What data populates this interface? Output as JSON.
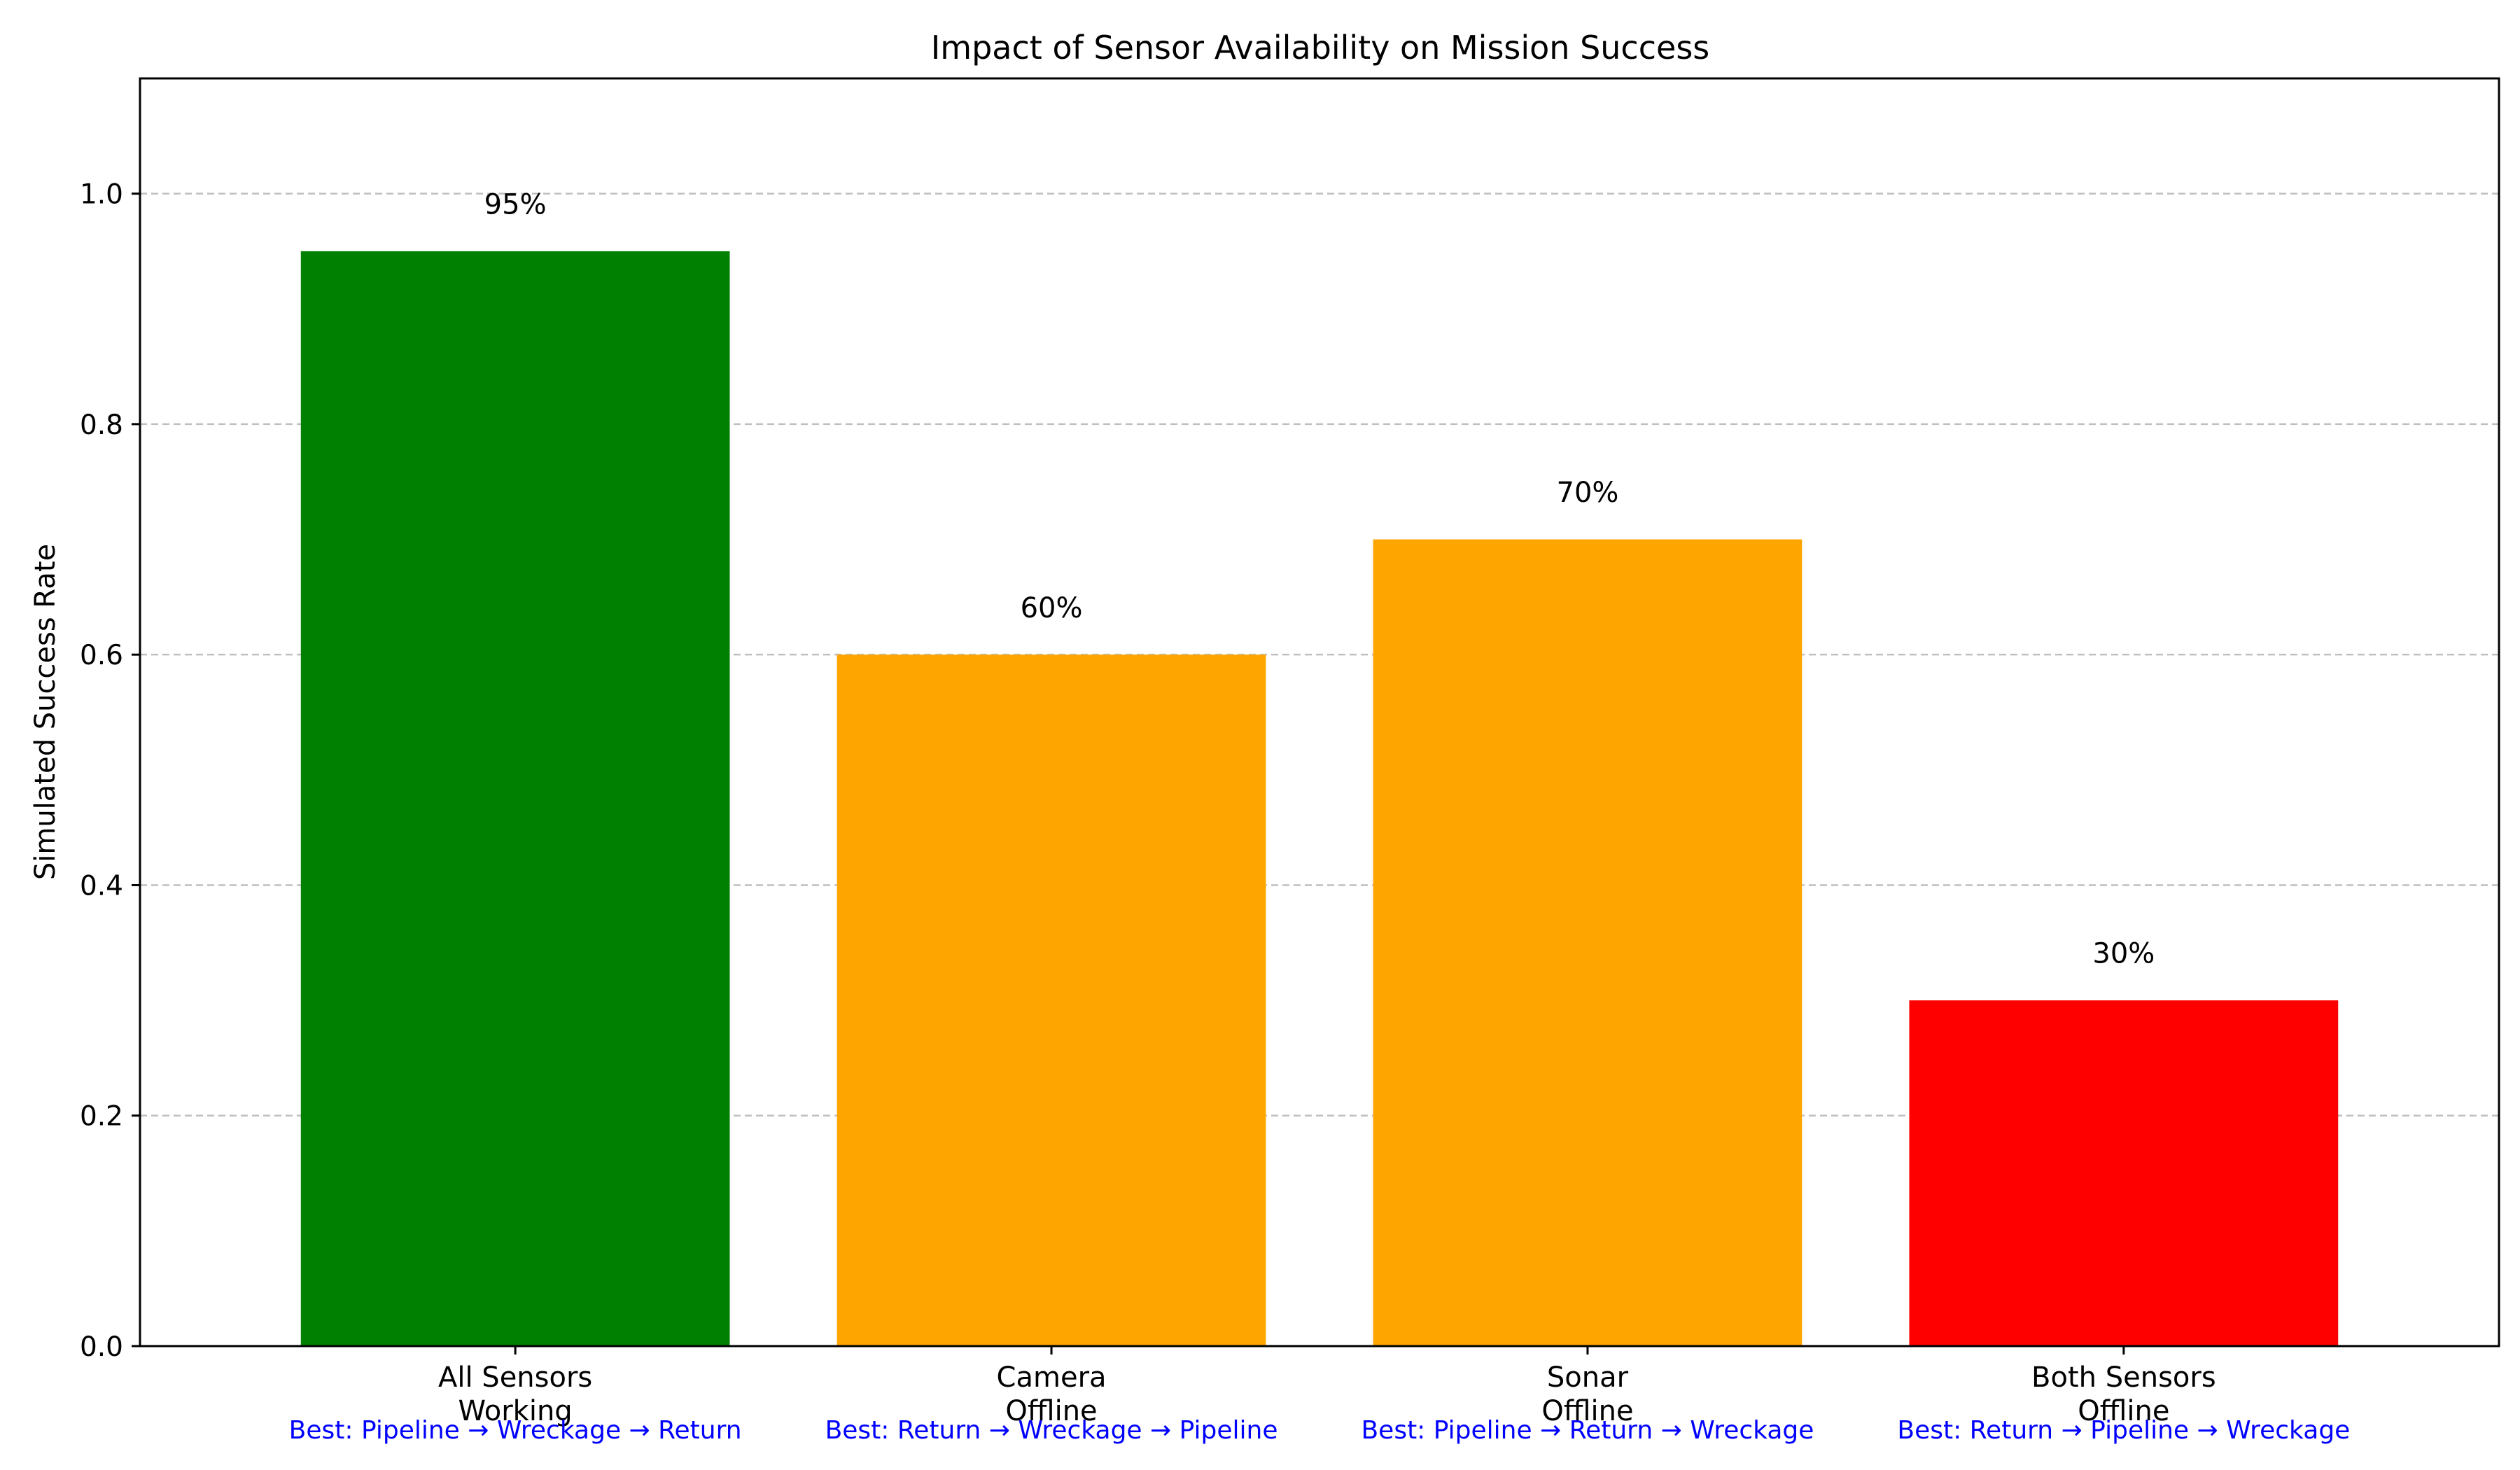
{
  "chart_data": {
    "type": "bar",
    "title": "Impact of Sensor Availability on Mission Success",
    "xlabel": "",
    "ylabel": "Simulated Success Rate",
    "ylim": [
      0,
      1.1
    ],
    "yticks": [
      0.0,
      0.2,
      0.4,
      0.6,
      0.8,
      1.0
    ],
    "ytick_labels": [
      "0.0",
      "0.2",
      "0.4",
      "0.6",
      "0.8",
      "1.0"
    ],
    "grid": "y-dashed",
    "categories": [
      [
        "All Sensors",
        "Working"
      ],
      [
        "Camera",
        "Offline"
      ],
      [
        "Sonar",
        "Offline"
      ],
      [
        "Both Sensors",
        "Offline"
      ]
    ],
    "values": [
      0.95,
      0.6,
      0.7,
      0.3
    ],
    "data_labels": [
      "95%",
      "60%",
      "70%",
      "30%"
    ],
    "colors": [
      "#008000",
      "#ffa500",
      "#ffa500",
      "#ff0000"
    ],
    "annotations": [
      "Best: Pipeline → Wreckage → Return",
      "Best: Return → Wreckage → Pipeline",
      "Best: Pipeline → Return → Wreckage",
      "Best: Return → Pipeline → Wreckage"
    ],
    "annotation_color": "#0000ff"
  }
}
